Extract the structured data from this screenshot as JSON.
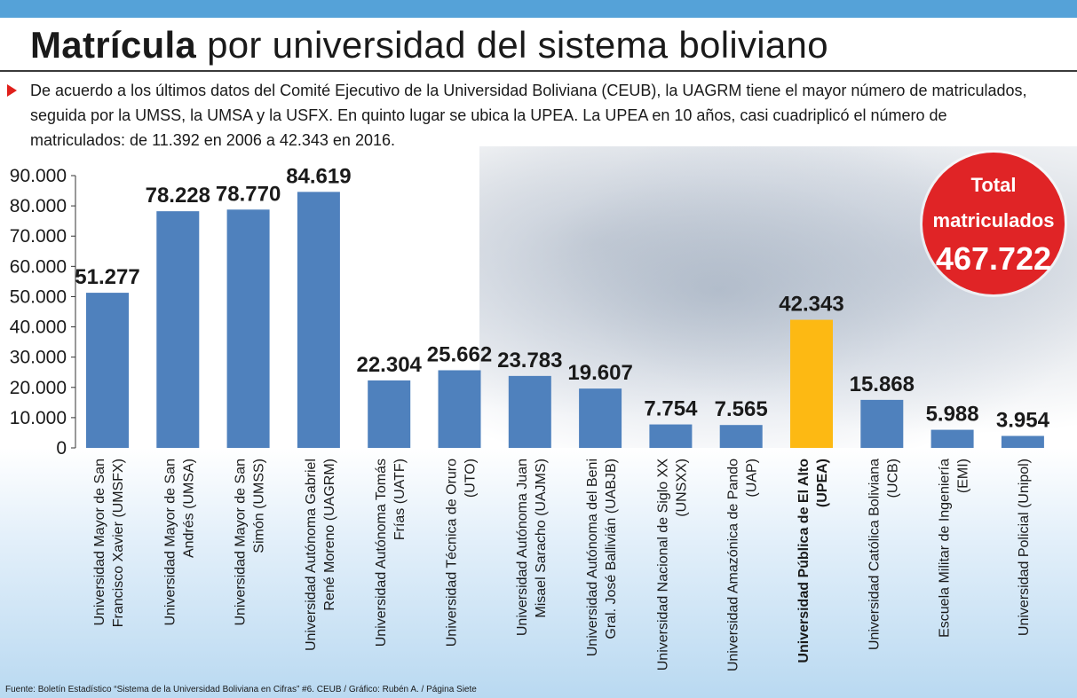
{
  "page": {
    "title_bold": "Matrícula",
    "title_rest": " por universidad del sistema boliviano",
    "intro": "De acuerdo a los últimos datos del Comité Ejecutivo de la Universidad Boliviana (CEUB), la UAGRM  tiene el mayor número de matriculados, seguida por la UMSS, la UMSA y la USFX. En quinto lugar se ubica la UPEA. La UPEA en 10 años,  casi cuadriplicó el número de matriculados: de 11.392 en 2006 a 42.343 en 2016.",
    "total_line1": "Total",
    "total_line2": "matriculados",
    "total_value": "467.722",
    "source": "Fuente: Boletín Estadístico “Sistema de la Universidad Boliviana en Cifras” #6. CEUB / Gráfico: Rubén A. / Página Siete"
  },
  "colors": {
    "bar": "#4f81bd",
    "highlight_bar": "#fdb913",
    "total_circle": "#e02426",
    "top_band": "#55a2d8"
  },
  "chart_data": {
    "type": "bar",
    "ylim": [
      0,
      90000
    ],
    "yticks": [
      0,
      10000,
      20000,
      30000,
      40000,
      50000,
      60000,
      70000,
      80000,
      90000
    ],
    "ytick_labels": [
      "0",
      "10.000",
      "20.000",
      "30.000",
      "40.000",
      "50.000",
      "60.000",
      "70.000",
      "80.000",
      "90.000"
    ],
    "grid": false,
    "highlight_index": 10,
    "categories": [
      [
        "Universidad Mayor de San",
        "Francisco Xavier (UMSFX)"
      ],
      [
        "Universidad Mayor de San",
        "Andrés (UMSA)"
      ],
      [
        "Universidad Mayor de San",
        "Simón (UMSS)"
      ],
      [
        "Universidad Autónoma Gabriel",
        "René Moreno (UAGRM)"
      ],
      [
        "Universidad Autónoma Tomás",
        "Frías (UATF)"
      ],
      [
        "Universidad Técnica de Oruro",
        "(UTO)"
      ],
      [
        "Universidad Autónoma Juan",
        "Misael Saracho (UAJMS)"
      ],
      [
        "Universidad Autónoma del Beni",
        "Gral. José Ballivián (UABJB)"
      ],
      [
        "Universidad Nacional de Siglo XX",
        "(UNSXX)"
      ],
      [
        "Universidad Amazónica de Pando",
        "(UAP)"
      ],
      [
        "Universidad Pública de El Alto",
        "(UPEA)"
      ],
      [
        "Universidad Católica Boliviana",
        "(UCB)"
      ],
      [
        "Escuela Militar de Ingeniería",
        "(EMI)"
      ],
      [
        "Universidad Policial (Unipol)"
      ]
    ],
    "values": [
      51277,
      78228,
      78770,
      84619,
      22304,
      25662,
      23783,
      19607,
      7754,
      7565,
      42343,
      15868,
      5988,
      3954
    ],
    "value_labels": [
      "51.277",
      "78.228",
      "78.770",
      "84.619",
      "22.304",
      "25.662",
      "23.783",
      "19.607",
      "7.754",
      "7.565",
      "42.343",
      "15.868",
      "5.988",
      "3.954"
    ]
  }
}
